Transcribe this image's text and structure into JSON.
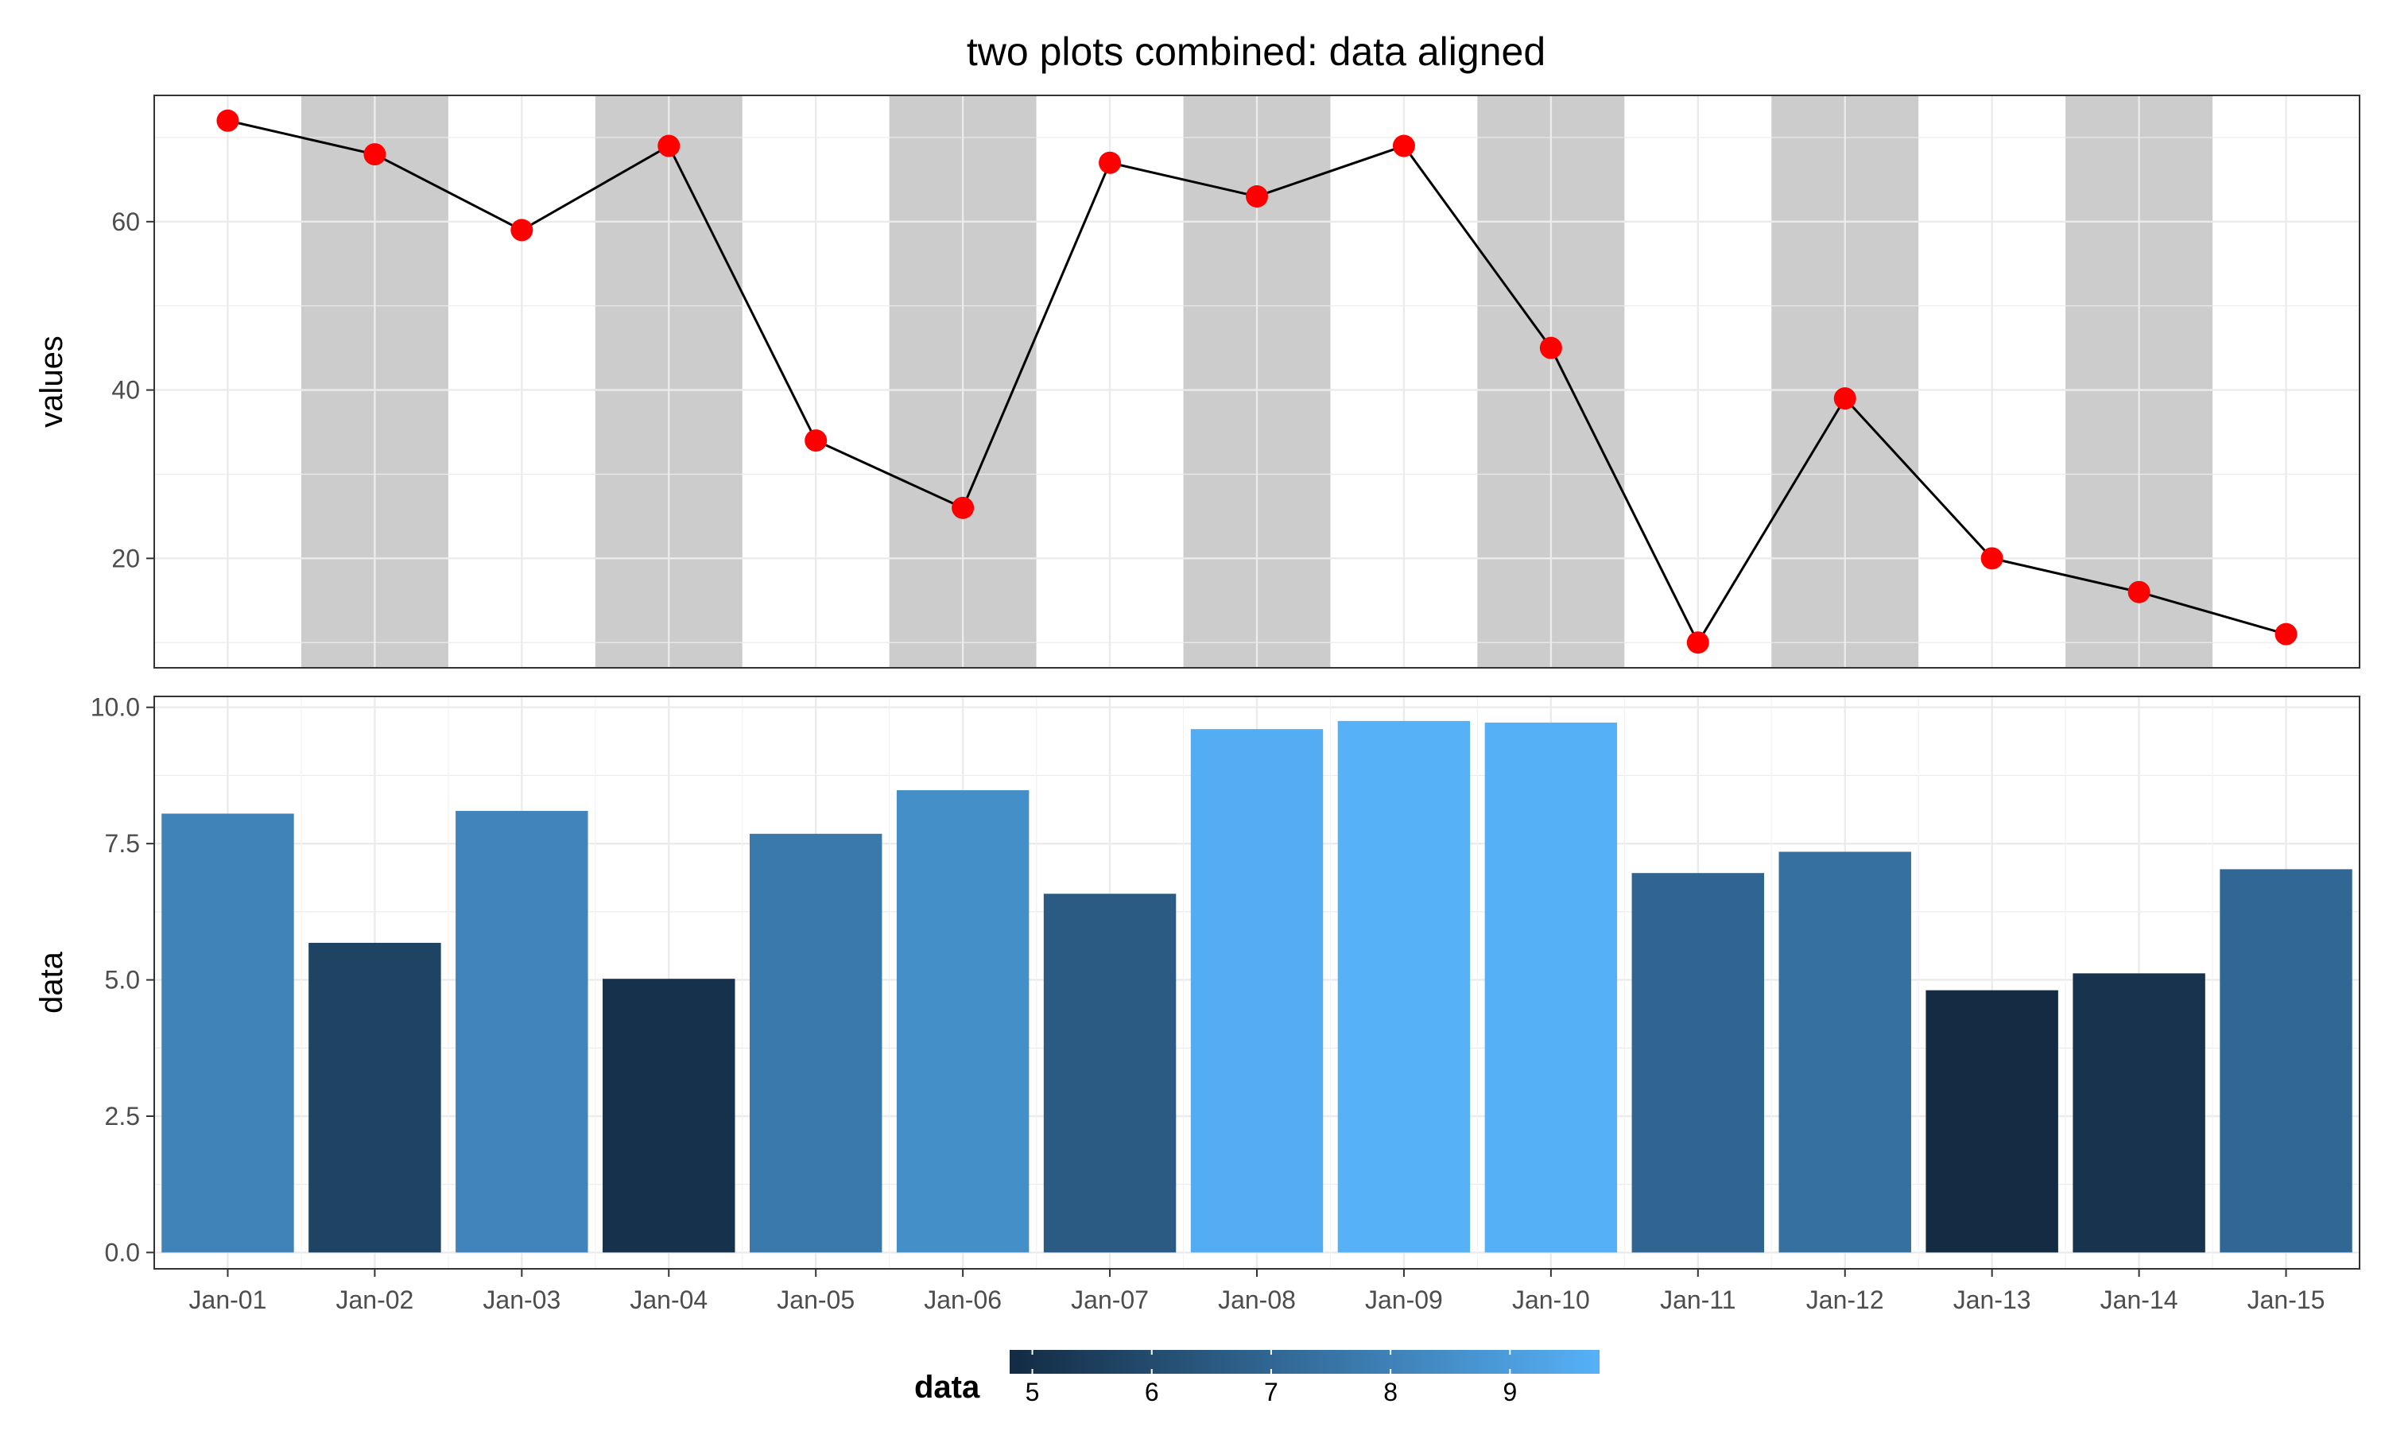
{
  "chart_data": {
    "title": "two plots combined: data aligned",
    "categories": [
      "Jan-01",
      "Jan-02",
      "Jan-03",
      "Jan-04",
      "Jan-05",
      "Jan-06",
      "Jan-07",
      "Jan-08",
      "Jan-09",
      "Jan-10",
      "Jan-11",
      "Jan-12",
      "Jan-13",
      "Jan-14",
      "Jan-15"
    ],
    "panels": [
      {
        "type": "line",
        "ylabel": "values",
        "ylim": [
          7,
          75
        ],
        "yticks": [
          20,
          40,
          60
        ],
        "grid": true,
        "shaded_bands": [
          "Jan-02",
          "Jan-04",
          "Jan-06",
          "Jan-08",
          "Jan-10",
          "Jan-12",
          "Jan-14"
        ],
        "shade_color": "#cccccc",
        "line_color": "#000000",
        "point_color": "#ff0000",
        "values": [
          72,
          68,
          59,
          69,
          34,
          26,
          67,
          63,
          69,
          45,
          10,
          39,
          20,
          16,
          11
        ]
      },
      {
        "type": "bar",
        "ylabel": "data",
        "ylim": [
          -0.3,
          10.2
        ],
        "yticks": [
          "0.0",
          "2.5",
          "5.0",
          "7.5",
          "10.0"
        ],
        "grid": true,
        "values": [
          8.05,
          5.68,
          8.1,
          5.02,
          7.68,
          8.48,
          6.58,
          9.6,
          9.75,
          9.72,
          6.96,
          7.35,
          4.81,
          5.12,
          7.03
        ]
      }
    ],
    "legend": {
      "title": "data",
      "placement": "bottom",
      "range": [
        4.81,
        9.75
      ],
      "ticks": [
        "5",
        "6",
        "7",
        "8",
        "9"
      ],
      "low_color": "#132b43",
      "high_color": "#56b1f7"
    }
  }
}
